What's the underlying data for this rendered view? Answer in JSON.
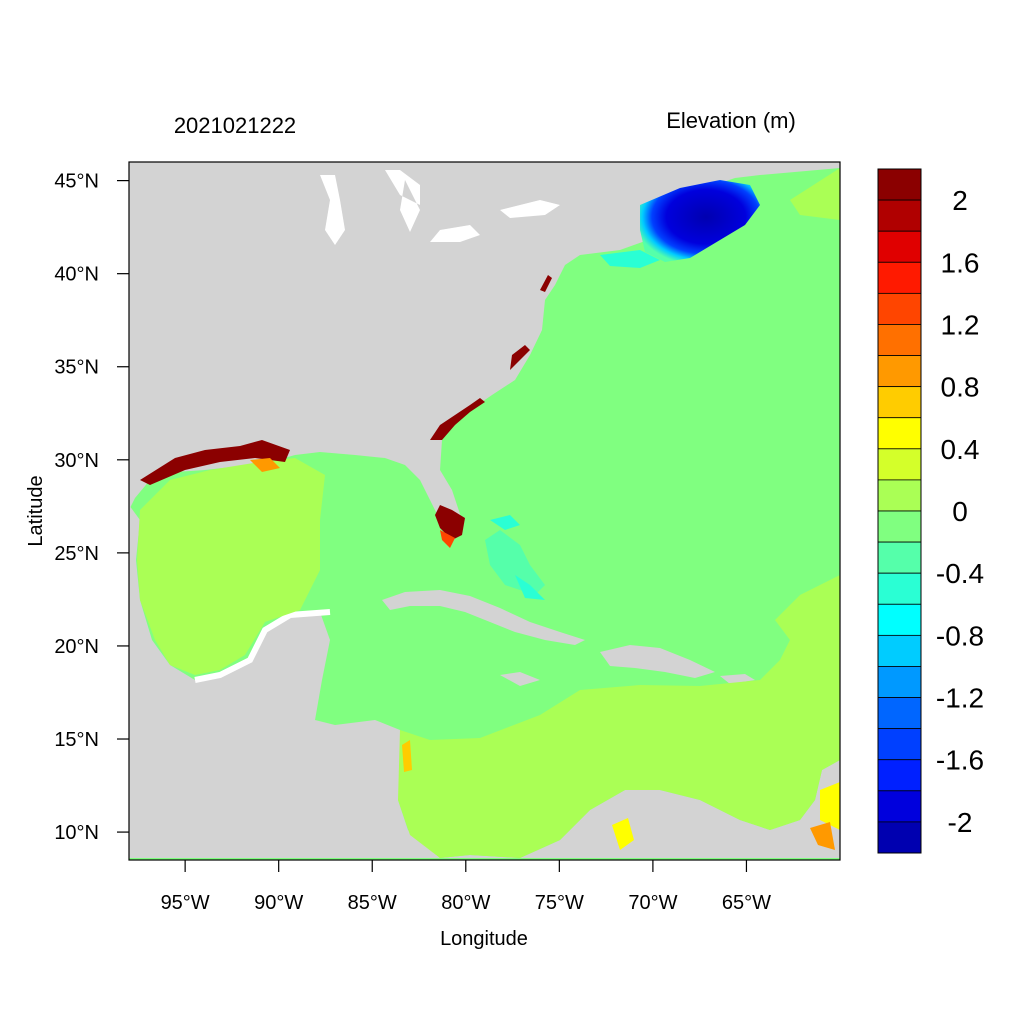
{
  "header": {
    "timestamp": "2021021222",
    "variable_title": "Elevation (m)"
  },
  "axes": {
    "xlabel": "Longitude",
    "ylabel": "Latitude",
    "x_ticks": [
      {
        "value": -95,
        "label": "95°W"
      },
      {
        "value": -90,
        "label": "90°W"
      },
      {
        "value": -85,
        "label": "85°W"
      },
      {
        "value": -80,
        "label": "80°W"
      },
      {
        "value": -75,
        "label": "75°W"
      },
      {
        "value": -70,
        "label": "70°W"
      },
      {
        "value": -65,
        "label": "65°W"
      }
    ],
    "y_ticks": [
      {
        "value": 45,
        "label": "45°N"
      },
      {
        "value": 40,
        "label": "40°N"
      },
      {
        "value": 35,
        "label": "35°N"
      },
      {
        "value": 30,
        "label": "30°N"
      },
      {
        "value": 25,
        "label": "25°N"
      },
      {
        "value": 20,
        "label": "20°N"
      },
      {
        "value": 15,
        "label": "15°N"
      },
      {
        "value": 10,
        "label": "10°N"
      }
    ],
    "lon_range": [
      -98,
      -60
    ],
    "lat_range": [
      8.5,
      46
    ]
  },
  "colorbar": {
    "levels": [
      {
        "color": "#8b0000"
      },
      {
        "color": "#b00000"
      },
      {
        "color": "#e00000"
      },
      {
        "color": "#ff1a00"
      },
      {
        "color": "#ff4500"
      },
      {
        "color": "#ff7000"
      },
      {
        "color": "#ff9900"
      },
      {
        "color": "#ffcc00"
      },
      {
        "color": "#ffff00"
      },
      {
        "color": "#d4ff2a"
      },
      {
        "color": "#aaff55"
      },
      {
        "color": "#80ff80"
      },
      {
        "color": "#55ffaa"
      },
      {
        "color": "#2affd4"
      },
      {
        "color": "#00ffff"
      },
      {
        "color": "#00ccff"
      },
      {
        "color": "#0099ff"
      },
      {
        "color": "#0066ff"
      },
      {
        "color": "#0040ff"
      },
      {
        "color": "#0020ff"
      },
      {
        "color": "#0000dd"
      },
      {
        "color": "#0000b0"
      }
    ],
    "labels": [
      {
        "text": "2",
        "row": 1
      },
      {
        "text": "1.6",
        "row": 3
      },
      {
        "text": "1.2",
        "row": 5
      },
      {
        "text": "0.8",
        "row": 7
      },
      {
        "text": "0.4",
        "row": 9
      },
      {
        "text": "0",
        "row": 11
      },
      {
        "text": "-0.4",
        "row": 13
      },
      {
        "text": "-0.8",
        "row": 15
      },
      {
        "text": "-1.2",
        "row": 17
      },
      {
        "text": "-1.6",
        "row": 19
      },
      {
        "text": "-2",
        "row": 21
      }
    ]
  },
  "map_colors": {
    "land": "#d3d3d3",
    "lakes": "#ffffff",
    "base_ocean": "#80ff80",
    "warm_anomaly": "#aaff55"
  }
}
